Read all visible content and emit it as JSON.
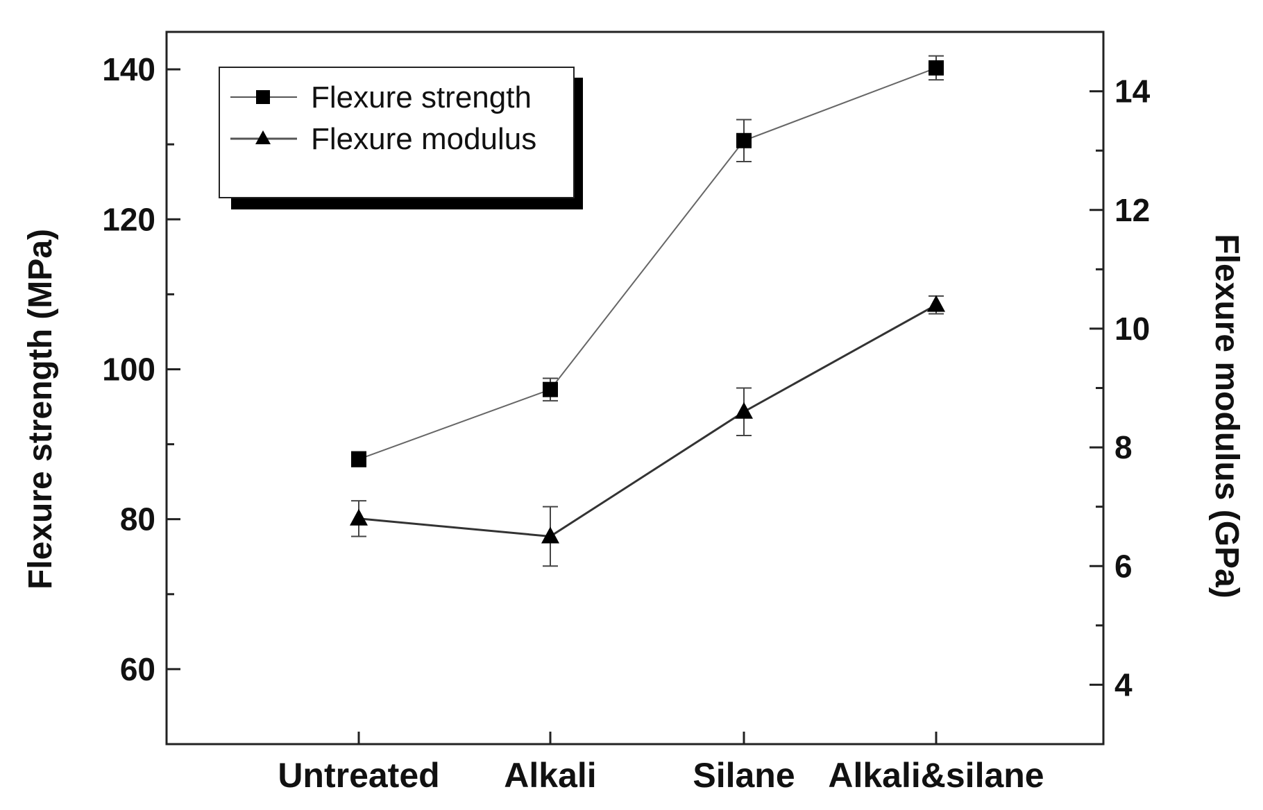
{
  "chart_data": {
    "type": "line",
    "categories": [
      "Untreated",
      "Alkali",
      "Silane",
      "Alkali&silane"
    ],
    "series": [
      {
        "name": "Flexure strength",
        "axis": "left",
        "marker": "square",
        "values": [
          88,
          97.3,
          130.5,
          140.2
        ],
        "errors": [
          1.0,
          1.5,
          2.8,
          1.6
        ]
      },
      {
        "name": "Flexure modulus",
        "axis": "right",
        "marker": "triangle",
        "values": [
          6.8,
          6.5,
          8.6,
          10.4
        ],
        "errors": [
          0.3,
          0.5,
          0.4,
          0.15
        ]
      }
    ],
    "ylabel": "Flexure strength (MPa)",
    "y2label": "Flexure modulus (GPa)",
    "ylim": [
      50,
      145
    ],
    "y2lim": [
      3,
      15
    ],
    "yticks": [
      60,
      80,
      100,
      120,
      140
    ],
    "y2ticks": [
      4,
      6,
      8,
      10,
      12,
      14
    ],
    "grid": false,
    "legend_position": "top-left",
    "colors": {
      "line": "#555555",
      "marker": "#000000",
      "axis": "#222222"
    }
  }
}
